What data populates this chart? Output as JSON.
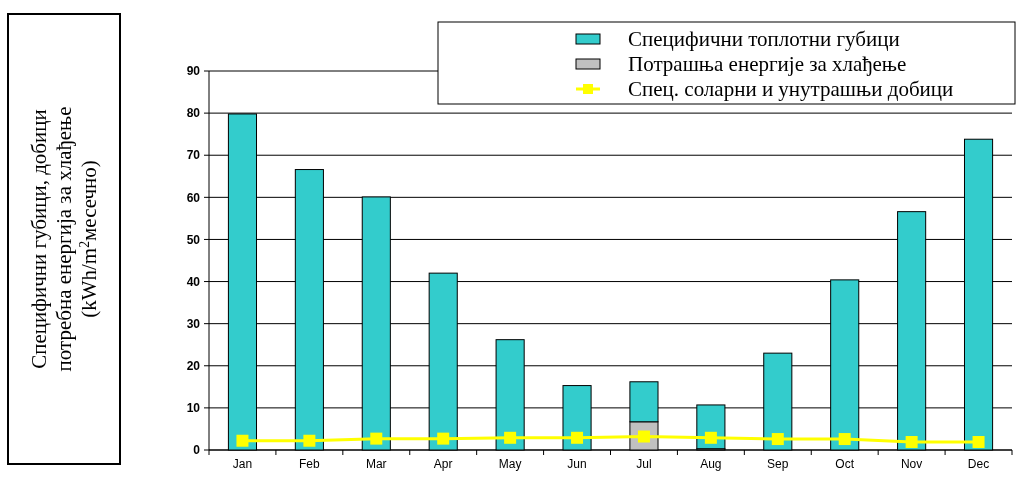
{
  "chart_data": {
    "type": "bar",
    "stacked": true,
    "categories": [
      "Jan",
      "Feb",
      "Mar",
      "Apr",
      "May",
      "Jun",
      "Jul",
      "Aug",
      "Sep",
      "Oct",
      "Nov",
      "Dec"
    ],
    "ylabel": "Специфични губици, добици\nпотребна енергија за хлађење\n(kWh/m$^{2}$месечно)",
    "series": [
      {
        "name": "Потрашња енергије за хлађење",
        "color": "#c0c0c0",
        "values": [
          null,
          null,
          null,
          null,
          null,
          null,
          6.7,
          0.3,
          null,
          null,
          null,
          null
        ]
      },
      {
        "name": "Специфични топлотни губици",
        "color": "#33cccc",
        "values": [
          79.8,
          66.6,
          60.1,
          42,
          26.2,
          15.3,
          9.5,
          10.4,
          23,
          40.4,
          56.6,
          73.8
        ]
      },
      {
        "name": "Спец. соларни и унутрашњи добици",
        "type": "line",
        "color": "#ffff00",
        "marker": "square",
        "values": [
          2.2,
          2.2,
          2.7,
          2.7,
          2.9,
          2.9,
          3.2,
          2.9,
          2.6,
          2.6,
          1.9,
          1.9
        ]
      }
    ],
    "ylim": [
      0,
      90
    ],
    "yticks": [
      0,
      10,
      20,
      30,
      40,
      50,
      60,
      70,
      80,
      90
    ],
    "grid": "y",
    "legend": "top right"
  }
}
